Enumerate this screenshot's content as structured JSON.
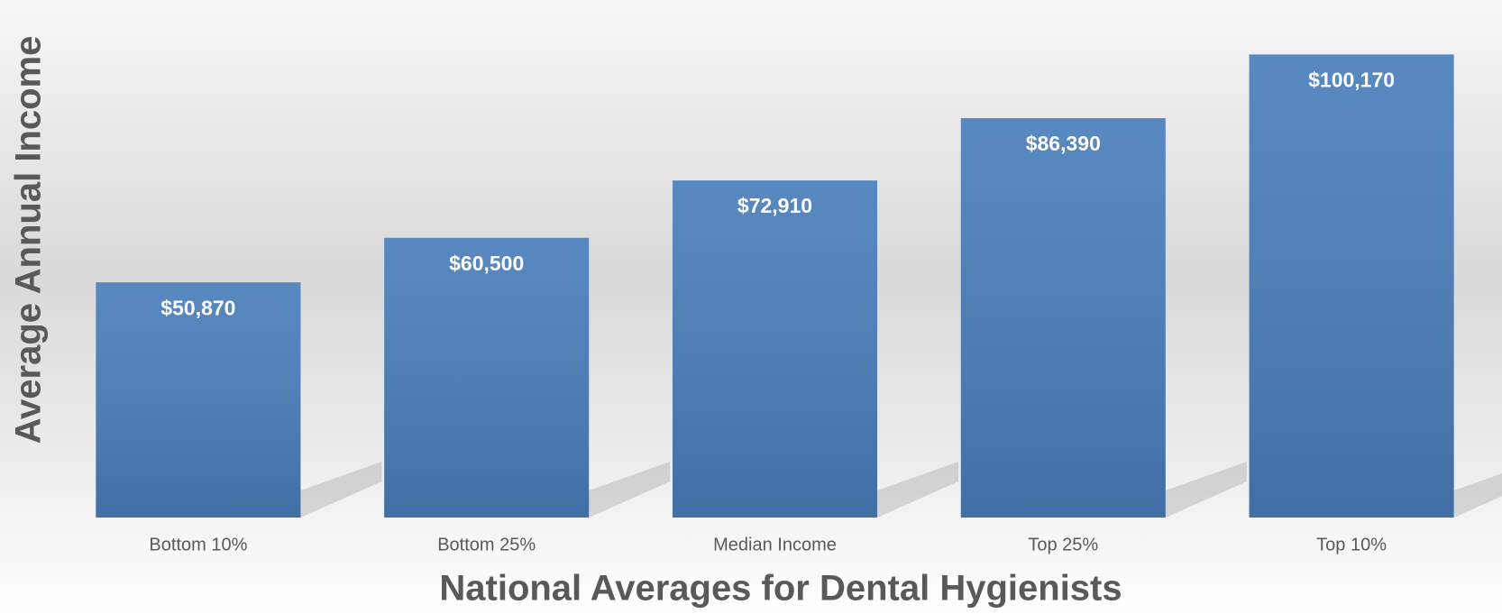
{
  "chart_data": {
    "type": "bar",
    "x_label": "National Averages for Dental Hygienists",
    "y_label": "Average Annual Income",
    "categories": [
      "Bottom 10%",
      "Bottom 25%",
      "Median Income",
      "Top 25%",
      "Top 10%"
    ],
    "values": [
      50870,
      60500,
      72910,
      86390,
      100170
    ],
    "value_labels": [
      "$50,870",
      "$60,500",
      "$72,910",
      "$86,390",
      "$100,170"
    ],
    "color": "#4a7ebb",
    "ylim": [
      0,
      110000
    ]
  }
}
